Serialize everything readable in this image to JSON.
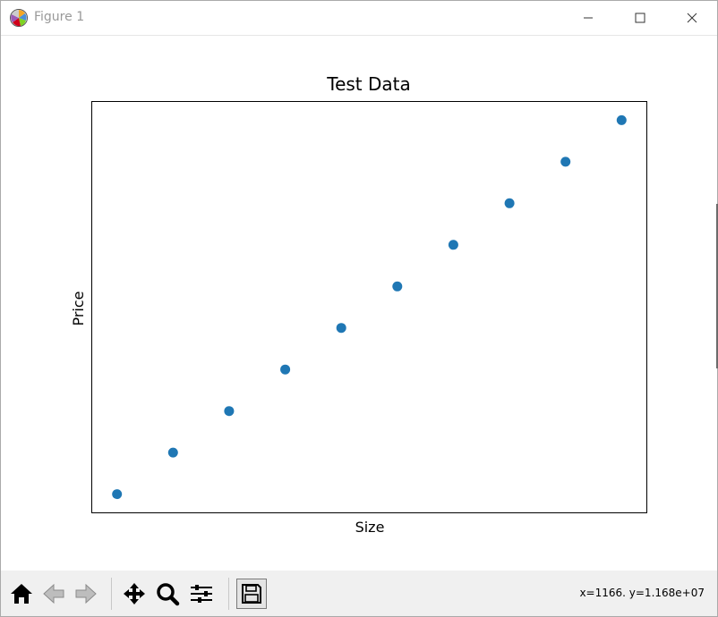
{
  "window": {
    "title": "Figure 1",
    "controls": [
      "minimize-icon",
      "maximize-icon",
      "close-icon"
    ]
  },
  "chart_data": {
    "type": "scatter",
    "title": "Test Data",
    "xlabel": "Size",
    "ylabel": "Price",
    "ticks_visible": false,
    "grid": false,
    "legend": "none",
    "marker_color": "#1f77b4",
    "series": [
      {
        "x": [
          1,
          2,
          3,
          4,
          5,
          6,
          7,
          8,
          9,
          10
        ],
        "y": [
          1.0,
          2.0,
          3.0,
          4.0,
          5.0,
          6.0,
          7.0,
          8.0,
          9.0,
          10.0
        ]
      }
    ],
    "xlim": [
      0.55,
      10.45
    ],
    "ylim": [
      0.55,
      10.45
    ]
  },
  "toolbar": {
    "buttons": [
      {
        "name": "home-icon"
      },
      {
        "name": "back-arrow-icon"
      },
      {
        "name": "forward-arrow-icon"
      },
      {
        "name": "pan-icon"
      },
      {
        "name": "zoom-icon"
      },
      {
        "name": "configure-subplots-icon"
      },
      {
        "name": "save-icon"
      }
    ],
    "coordinates": "x=1166. y=1.168e+07"
  }
}
